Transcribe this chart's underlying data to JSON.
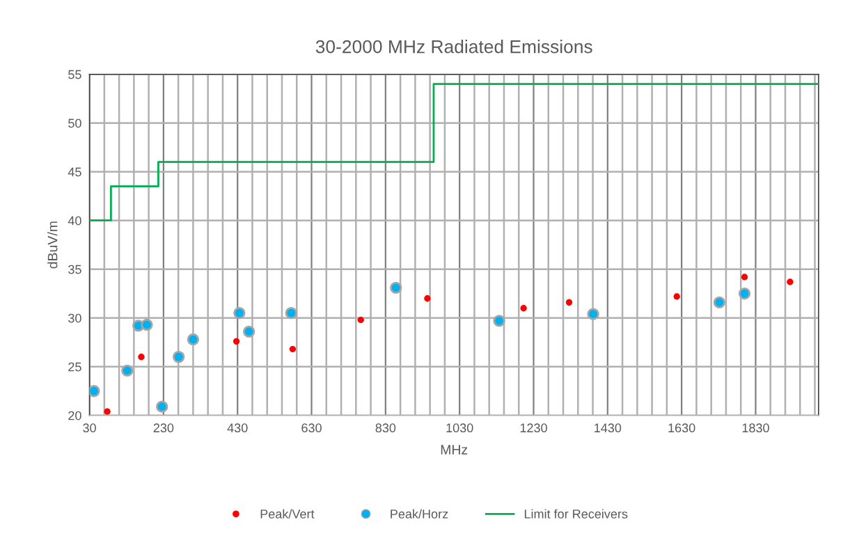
{
  "chart_data": {
    "type": "scatter",
    "title": "30-2000 MHz Radiated Emissions",
    "xlabel": "MHz",
    "ylabel": "dBuV/m",
    "xlim": [
      30,
      2000
    ],
    "ylim": [
      20,
      55
    ],
    "xticks": [
      30,
      {
        "value": 70,
        "label": null
      },
      {
        "value": 110,
        "label": null
      },
      {
        "value": 150,
        "label": null
      },
      {
        "value": 190,
        "label": null
      },
      230,
      {
        "value": 270,
        "label": null
      },
      {
        "value": 310,
        "label": null
      },
      {
        "value": 350,
        "label": null
      },
      {
        "value": 390,
        "label": null
      },
      430,
      {
        "value": 470,
        "label": null
      },
      {
        "value": 510,
        "label": null
      },
      {
        "value": 550,
        "label": null
      },
      {
        "value": 590,
        "label": null
      },
      630,
      {
        "value": 670,
        "label": null
      },
      {
        "value": 710,
        "label": null
      },
      {
        "value": 750,
        "label": null
      },
      {
        "value": 790,
        "label": null
      },
      830,
      {
        "value": 870,
        "label": null
      },
      {
        "value": 910,
        "label": null
      },
      {
        "value": 950,
        "label": null
      },
      {
        "value": 990,
        "label": null
      },
      1030,
      {
        "value": 1070,
        "label": null
      },
      {
        "value": 1110,
        "label": null
      },
      {
        "value": 1150,
        "label": null
      },
      {
        "value": 1190,
        "label": null
      },
      1230,
      {
        "value": 1270,
        "label": null
      },
      {
        "value": 1310,
        "label": null
      },
      {
        "value": 1350,
        "label": null
      },
      {
        "value": 1390,
        "label": null
      },
      1430,
      {
        "value": 1470,
        "label": null
      },
      {
        "value": 1510,
        "label": null
      },
      {
        "value": 1550,
        "label": null
      },
      {
        "value": 1590,
        "label": null
      },
      1630,
      {
        "value": 1670,
        "label": null
      },
      {
        "value": 1710,
        "label": null
      },
      {
        "value": 1750,
        "label": null
      },
      {
        "value": 1790,
        "label": null
      },
      1830,
      {
        "value": 1870,
        "label": null
      },
      {
        "value": 1910,
        "label": null
      },
      {
        "value": 1950,
        "label": null
      },
      {
        "value": 1990,
        "label": null
      }
    ],
    "yticks": [
      20,
      25,
      30,
      35,
      40,
      45,
      50,
      55
    ],
    "grid": true,
    "legend": "bottom",
    "series": [
      {
        "name": "Peak/Vert",
        "color": "#ff0000",
        "marker": "circle",
        "x": [
          78,
          170,
          427,
          579,
          763,
          943,
          1203,
          1326,
          1617,
          1800,
          1923
        ],
        "values": [
          20.4,
          26.0,
          27.6,
          26.8,
          29.8,
          32.0,
          31.0,
          31.6,
          32.2,
          34.2,
          33.7
        ]
      },
      {
        "name": "Peak/Horz",
        "color": "#00b0f0",
        "marker": "circle",
        "x": [
          42,
          132,
          162,
          185,
          226,
          271,
          310,
          435,
          461,
          575,
          858,
          1137,
          1391,
          1732,
          1800
        ],
        "values": [
          22.5,
          24.6,
          29.2,
          29.3,
          20.9,
          26.0,
          27.8,
          30.5,
          28.6,
          30.5,
          33.1,
          29.7,
          30.4,
          31.6,
          32.5
        ]
      },
      {
        "name": "Limit for Receivers",
        "type": "step",
        "color": "#00b050",
        "x": [
          30,
          88,
          216,
          960,
          2000
        ],
        "values": [
          40,
          43.5,
          46,
          54,
          54
        ]
      }
    ]
  }
}
